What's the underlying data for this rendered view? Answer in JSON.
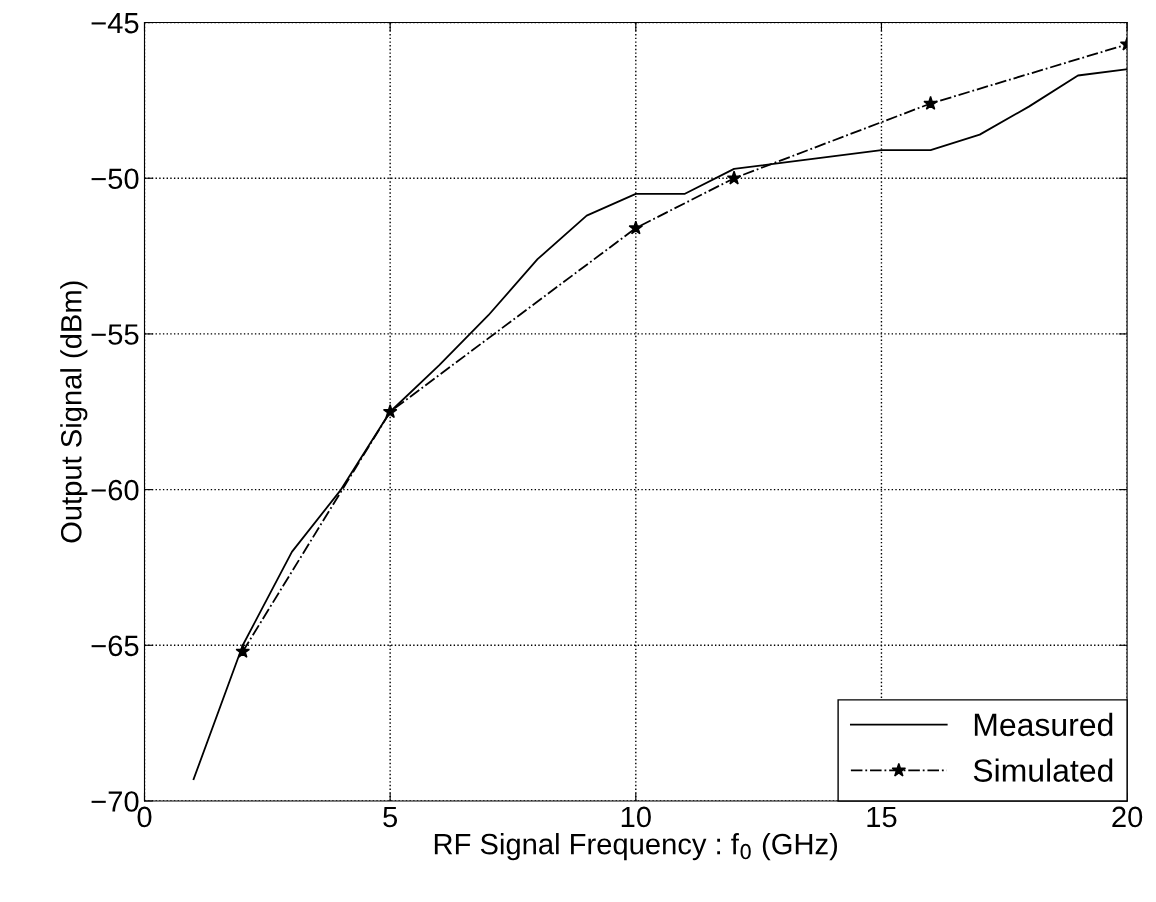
{
  "chart_data": {
    "type": "line",
    "xlabel": "RF Signal Frequency : f$_{0}$ (GHz)",
    "ylabel": "Output Signal (dBm)",
    "xlim": [
      0,
      20
    ],
    "ylim": [
      -70,
      -45
    ],
    "xticks": [
      0,
      5,
      10,
      15,
      20
    ],
    "yticks": [
      -70,
      -65,
      -60,
      -55,
      -50,
      -45
    ],
    "grid": true,
    "legend": "bottom right",
    "series": [
      {
        "name": "Measured",
        "color": "#000000",
        "marker": "none",
        "line_style": "solid",
        "x": [
          1,
          2,
          3,
          4,
          5,
          6,
          7,
          8,
          9,
          10,
          11,
          12,
          13,
          14,
          15,
          16,
          17,
          18,
          19,
          20
        ],
        "values": [
          -69.3,
          -65.0,
          -62.0,
          -60.0,
          -57.5,
          -56.0,
          -54.4,
          -52.6,
          -51.2,
          -50.5,
          -50.5,
          -49.7,
          -49.5,
          -49.3,
          -49.1,
          -49.1,
          -48.6,
          -47.7,
          -46.7,
          -46.5
        ]
      },
      {
        "name": "Simulated",
        "color": "#000000",
        "marker": "star",
        "line_style": "dashed",
        "x": [
          2,
          5,
          10,
          12,
          16,
          20
        ],
        "values": [
          -65.2,
          -57.5,
          -51.6,
          -50.0,
          -47.6,
          -45.7
        ]
      }
    ]
  }
}
